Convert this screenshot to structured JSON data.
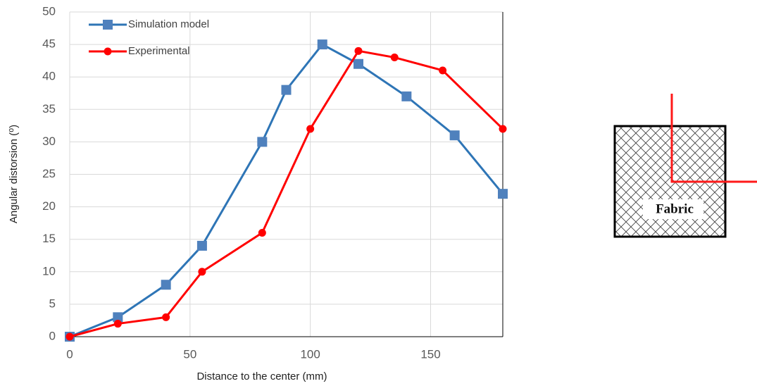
{
  "chart_data": {
    "type": "line",
    "xlabel": "Distance to the center (mm)",
    "ylabel": "Angular distorsion (⁰)",
    "xlim": [
      0,
      180
    ],
    "xticks": [
      0,
      50,
      100,
      150
    ],
    "ylim": [
      0,
      50
    ],
    "yticks": [
      0,
      5,
      10,
      15,
      20,
      25,
      30,
      35,
      40,
      45,
      50
    ],
    "grid": true,
    "legend": "upper left",
    "series": [
      {
        "name": "Simulation model",
        "color": "#2e75b6",
        "marker": "square",
        "marker_color": "#4f81bd",
        "x": [
          0,
          20,
          40,
          55,
          80,
          90,
          105,
          120,
          140,
          160,
          180
        ],
        "values": [
          0,
          3,
          8,
          14,
          30,
          38,
          45,
          42,
          37,
          31,
          22
        ]
      },
      {
        "name": "Experimental",
        "color": "#ff0000",
        "marker": "circle",
        "marker_color": "#ff0000",
        "x": [
          0,
          20,
          40,
          55,
          80,
          100,
          120,
          135,
          155,
          180
        ],
        "values": [
          0,
          2,
          3,
          10,
          16,
          32,
          44,
          43,
          41,
          32
        ]
      }
    ]
  },
  "diagram": {
    "label": "Fabric"
  }
}
